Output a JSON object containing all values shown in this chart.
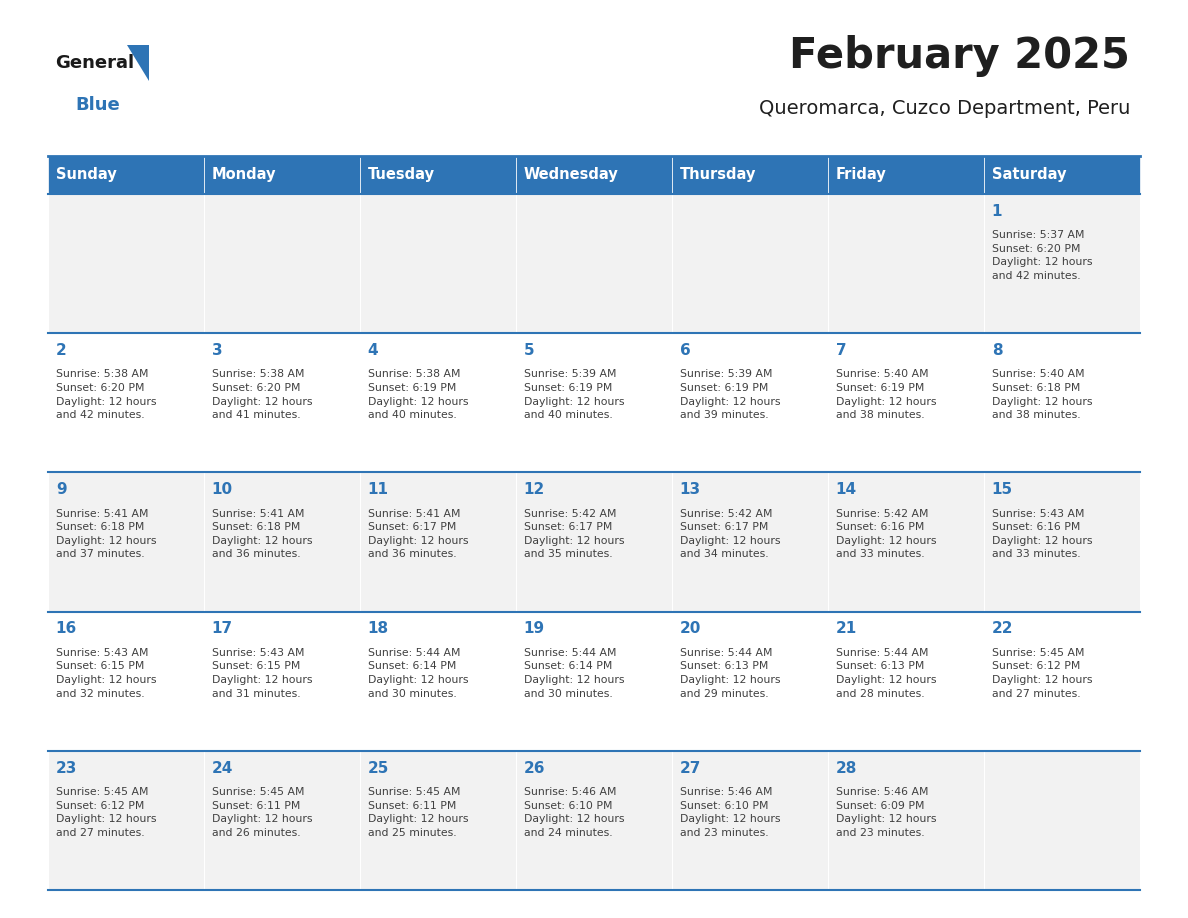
{
  "title": "February 2025",
  "subtitle": "Queromarca, Cuzco Department, Peru",
  "header_bg": "#2E74B5",
  "header_text_color": "#FFFFFF",
  "cell_bg_row0": "#F2F2F2",
  "cell_bg_row1": "#FFFFFF",
  "cell_bg_row2": "#F2F2F2",
  "cell_bg_row3": "#FFFFFF",
  "cell_bg_row4": "#F2F2F2",
  "border_color": "#2E74B5",
  "day_names": [
    "Sunday",
    "Monday",
    "Tuesday",
    "Wednesday",
    "Thursday",
    "Friday",
    "Saturday"
  ],
  "title_color": "#1F1F1F",
  "subtitle_color": "#1F1F1F",
  "day_num_color": "#2E74B5",
  "info_color": "#404040",
  "calendar_data": {
    "1": {
      "sunrise": "5:37 AM",
      "sunset": "6:20 PM",
      "daylight_hrs": "12 hours",
      "daylight_min": "42 minutes."
    },
    "2": {
      "sunrise": "5:38 AM",
      "sunset": "6:20 PM",
      "daylight_hrs": "12 hours",
      "daylight_min": "42 minutes."
    },
    "3": {
      "sunrise": "5:38 AM",
      "sunset": "6:20 PM",
      "daylight_hrs": "12 hours",
      "daylight_min": "41 minutes."
    },
    "4": {
      "sunrise": "5:38 AM",
      "sunset": "6:19 PM",
      "daylight_hrs": "12 hours",
      "daylight_min": "40 minutes."
    },
    "5": {
      "sunrise": "5:39 AM",
      "sunset": "6:19 PM",
      "daylight_hrs": "12 hours",
      "daylight_min": "40 minutes."
    },
    "6": {
      "sunrise": "5:39 AM",
      "sunset": "6:19 PM",
      "daylight_hrs": "12 hours",
      "daylight_min": "39 minutes."
    },
    "7": {
      "sunrise": "5:40 AM",
      "sunset": "6:19 PM",
      "daylight_hrs": "12 hours",
      "daylight_min": "38 minutes."
    },
    "8": {
      "sunrise": "5:40 AM",
      "sunset": "6:18 PM",
      "daylight_hrs": "12 hours",
      "daylight_min": "38 minutes."
    },
    "9": {
      "sunrise": "5:41 AM",
      "sunset": "6:18 PM",
      "daylight_hrs": "12 hours",
      "daylight_min": "37 minutes."
    },
    "10": {
      "sunrise": "5:41 AM",
      "sunset": "6:18 PM",
      "daylight_hrs": "12 hours",
      "daylight_min": "36 minutes."
    },
    "11": {
      "sunrise": "5:41 AM",
      "sunset": "6:17 PM",
      "daylight_hrs": "12 hours",
      "daylight_min": "36 minutes."
    },
    "12": {
      "sunrise": "5:42 AM",
      "sunset": "6:17 PM",
      "daylight_hrs": "12 hours",
      "daylight_min": "35 minutes."
    },
    "13": {
      "sunrise": "5:42 AM",
      "sunset": "6:17 PM",
      "daylight_hrs": "12 hours",
      "daylight_min": "34 minutes."
    },
    "14": {
      "sunrise": "5:42 AM",
      "sunset": "6:16 PM",
      "daylight_hrs": "12 hours",
      "daylight_min": "33 minutes."
    },
    "15": {
      "sunrise": "5:43 AM",
      "sunset": "6:16 PM",
      "daylight_hrs": "12 hours",
      "daylight_min": "33 minutes."
    },
    "16": {
      "sunrise": "5:43 AM",
      "sunset": "6:15 PM",
      "daylight_hrs": "12 hours",
      "daylight_min": "32 minutes."
    },
    "17": {
      "sunrise": "5:43 AM",
      "sunset": "6:15 PM",
      "daylight_hrs": "12 hours",
      "daylight_min": "31 minutes."
    },
    "18": {
      "sunrise": "5:44 AM",
      "sunset": "6:14 PM",
      "daylight_hrs": "12 hours",
      "daylight_min": "30 minutes."
    },
    "19": {
      "sunrise": "5:44 AM",
      "sunset": "6:14 PM",
      "daylight_hrs": "12 hours",
      "daylight_min": "30 minutes."
    },
    "20": {
      "sunrise": "5:44 AM",
      "sunset": "6:13 PM",
      "daylight_hrs": "12 hours",
      "daylight_min": "29 minutes."
    },
    "21": {
      "sunrise": "5:44 AM",
      "sunset": "6:13 PM",
      "daylight_hrs": "12 hours",
      "daylight_min": "28 minutes."
    },
    "22": {
      "sunrise": "5:45 AM",
      "sunset": "6:12 PM",
      "daylight_hrs": "12 hours",
      "daylight_min": "27 minutes."
    },
    "23": {
      "sunrise": "5:45 AM",
      "sunset": "6:12 PM",
      "daylight_hrs": "12 hours",
      "daylight_min": "27 minutes."
    },
    "24": {
      "sunrise": "5:45 AM",
      "sunset": "6:11 PM",
      "daylight_hrs": "12 hours",
      "daylight_min": "26 minutes."
    },
    "25": {
      "sunrise": "5:45 AM",
      "sunset": "6:11 PM",
      "daylight_hrs": "12 hours",
      "daylight_min": "25 minutes."
    },
    "26": {
      "sunrise": "5:46 AM",
      "sunset": "6:10 PM",
      "daylight_hrs": "12 hours",
      "daylight_min": "24 minutes."
    },
    "27": {
      "sunrise": "5:46 AM",
      "sunset": "6:10 PM",
      "daylight_hrs": "12 hours",
      "daylight_min": "23 minutes."
    },
    "28": {
      "sunrise": "5:46 AM",
      "sunset": "6:09 PM",
      "daylight_hrs": "12 hours",
      "daylight_min": "23 minutes."
    }
  },
  "week_layout": [
    [
      null,
      null,
      null,
      null,
      null,
      null,
      1
    ],
    [
      2,
      3,
      4,
      5,
      6,
      7,
      8
    ],
    [
      9,
      10,
      11,
      12,
      13,
      14,
      15
    ],
    [
      16,
      17,
      18,
      19,
      20,
      21,
      22
    ],
    [
      23,
      24,
      25,
      26,
      27,
      28,
      null
    ]
  ],
  "logo_general_color": "#1a1a1a",
  "logo_blue_color": "#2E74B5",
  "logo_triangle_color": "#2E74B5"
}
